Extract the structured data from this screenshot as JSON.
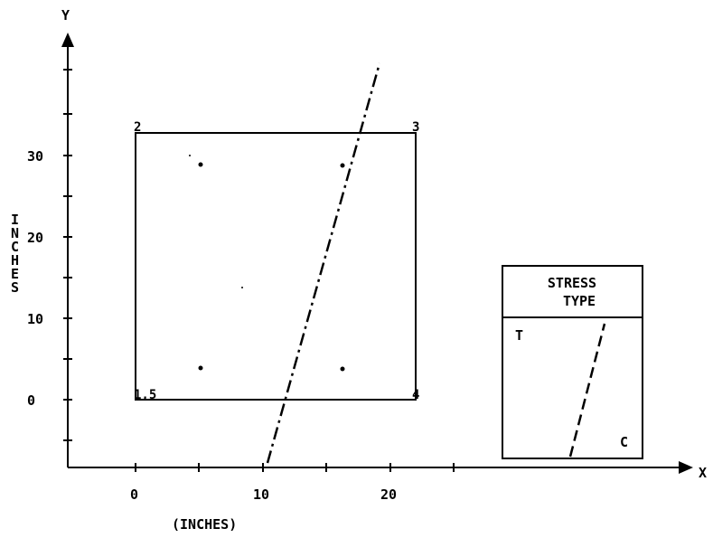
{
  "diagram": {
    "y_axis_letter": "Y",
    "x_axis_letter": "X",
    "y_axis_title": "INCHES",
    "x_axis_title": "(INCHES)",
    "x_ticks": [
      "0",
      "10",
      "20"
    ],
    "y_ticks": [
      "0",
      "10",
      "20",
      "30"
    ],
    "corner_labels": {
      "c1": "1,5",
      "c2": "2",
      "c3": "3",
      "c4": "4"
    },
    "legend": {
      "title_line1": "STRESS",
      "title_line2": "TYPE",
      "tension": "T",
      "compression": "C"
    }
  }
}
